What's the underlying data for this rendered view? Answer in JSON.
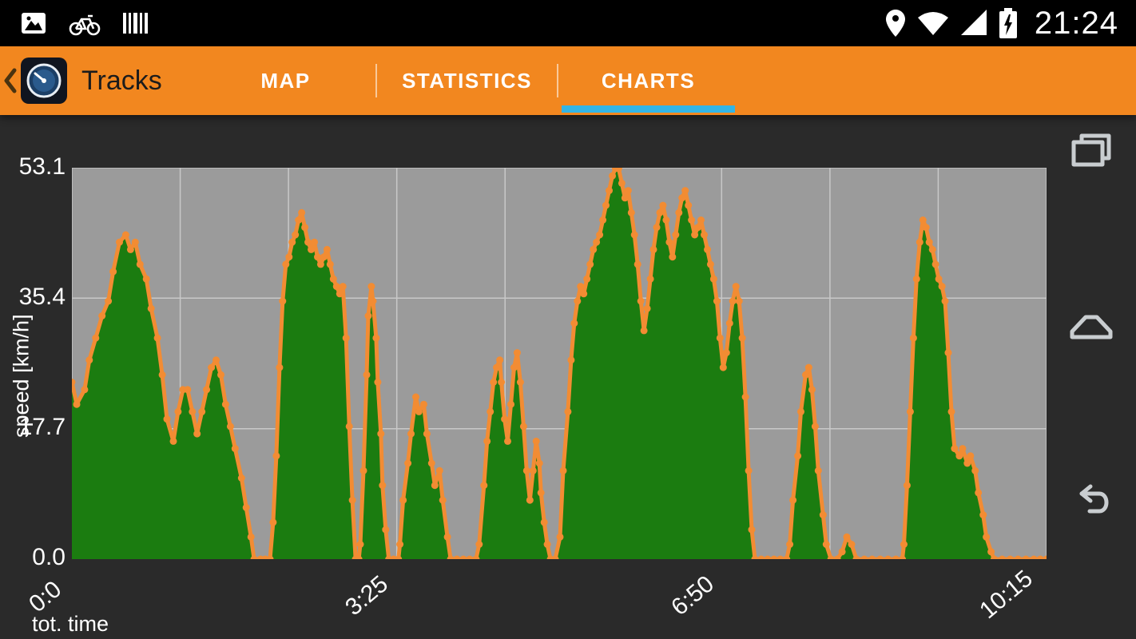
{
  "colors": {
    "app_bar": "#F2871F",
    "status_bar": "#000000",
    "content_bg": "#2A2A2A",
    "tab_underline": "#33B5E5",
    "chart_line": "#F28C33",
    "chart_fill": "#1B7C10",
    "plot_bg": "#9B9B9B",
    "grid": "#C8C8C8",
    "text_light": "#FFFFFF",
    "title_text": "#1C1C1C"
  },
  "status_bar": {
    "time": "21:24",
    "left_icons": [
      "gallery-icon",
      "bike-icon",
      "barcode-icon"
    ],
    "right_icons": [
      "location-icon",
      "wifi-icon",
      "signal-icon",
      "battery-charging-icon"
    ]
  },
  "app_bar": {
    "title": "Tracks",
    "tabs": [
      {
        "label": "MAP",
        "active": false
      },
      {
        "label": "STATISTICS",
        "active": false
      },
      {
        "label": "CHARTS",
        "active": true
      }
    ]
  },
  "nav_rail": {
    "icons": [
      "recents-icon",
      "home-icon",
      "back-icon"
    ]
  },
  "chart_data": {
    "type": "area",
    "ylabel": "speed [km/h]",
    "xlabel": "tot. time",
    "y_max": 53.1,
    "x_max": 615,
    "y_tick_labels": [
      "53.1",
      "35.4",
      "17.7",
      "0.0"
    ],
    "y_tick_values": [
      53.1,
      35.4,
      17.7,
      0
    ],
    "x_tick_labels": [
      "0:0",
      "3:25",
      "6:50",
      "10:15"
    ],
    "x_tick_values": [
      0,
      205,
      410,
      615
    ],
    "v_grid_count": 9,
    "grid": true,
    "legend": null,
    "points": [
      [
        0,
        24
      ],
      [
        3,
        21
      ],
      [
        8,
        23
      ],
      [
        11,
        27
      ],
      [
        15,
        30
      ],
      [
        19,
        33
      ],
      [
        23,
        35
      ],
      [
        26,
        39
      ],
      [
        30,
        43
      ],
      [
        34,
        44
      ],
      [
        37,
        42
      ],
      [
        40,
        43
      ],
      [
        43,
        40
      ],
      [
        47,
        38
      ],
      [
        50,
        34
      ],
      [
        54,
        30
      ],
      [
        57,
        25
      ],
      [
        60,
        19
      ],
      [
        64,
        16
      ],
      [
        67,
        20
      ],
      [
        70,
        23
      ],
      [
        73,
        23
      ],
      [
        76,
        20
      ],
      [
        79,
        17
      ],
      [
        82,
        20
      ],
      [
        85,
        23
      ],
      [
        88,
        26
      ],
      [
        91,
        27
      ],
      [
        94,
        25
      ],
      [
        97,
        21
      ],
      [
        100,
        18
      ],
      [
        103,
        15
      ],
      [
        107,
        11
      ],
      [
        110,
        7
      ],
      [
        113,
        3
      ],
      [
        115,
        0
      ],
      [
        119,
        0
      ],
      [
        122,
        0
      ],
      [
        125,
        0
      ],
      [
        127,
        5
      ],
      [
        129,
        14
      ],
      [
        131,
        26
      ],
      [
        133,
        35
      ],
      [
        135,
        40
      ],
      [
        137,
        41
      ],
      [
        139,
        43
      ],
      [
        141,
        44
      ],
      [
        143,
        46
      ],
      [
        145,
        47
      ],
      [
        147,
        45
      ],
      [
        149,
        43
      ],
      [
        151,
        42
      ],
      [
        153,
        43
      ],
      [
        155,
        41
      ],
      [
        157,
        40
      ],
      [
        159,
        41
      ],
      [
        161,
        42
      ],
      [
        163,
        40
      ],
      [
        165,
        38
      ],
      [
        167,
        37
      ],
      [
        169,
        36
      ],
      [
        171,
        37
      ],
      [
        173,
        30
      ],
      [
        175,
        18
      ],
      [
        177,
        8
      ],
      [
        179,
        0
      ],
      [
        181,
        0
      ],
      [
        182,
        2
      ],
      [
        184,
        12
      ],
      [
        186,
        25
      ],
      [
        187,
        33
      ],
      [
        189,
        37
      ],
      [
        190,
        35
      ],
      [
        192,
        30
      ],
      [
        193,
        24
      ],
      [
        195,
        17
      ],
      [
        196,
        10
      ],
      [
        198,
        4
      ],
      [
        200,
        0
      ],
      [
        203,
        0
      ],
      [
        206,
        0
      ],
      [
        207,
        2
      ],
      [
        209,
        8
      ],
      [
        212,
        13
      ],
      [
        214,
        17
      ],
      [
        217,
        22
      ],
      [
        219,
        20
      ],
      [
        222,
        21
      ],
      [
        224,
        17
      ],
      [
        227,
        13
      ],
      [
        229,
        10
      ],
      [
        232,
        12
      ],
      [
        234,
        8
      ],
      [
        237,
        3
      ],
      [
        239,
        0
      ],
      [
        243,
        0
      ],
      [
        247,
        0
      ],
      [
        251,
        0
      ],
      [
        255,
        0
      ],
      [
        257,
        2
      ],
      [
        260,
        10
      ],
      [
        262,
        16
      ],
      [
        264,
        20
      ],
      [
        266,
        24
      ],
      [
        268,
        26
      ],
      [
        270,
        27
      ],
      [
        271,
        24
      ],
      [
        273,
        19
      ],
      [
        275,
        16
      ],
      [
        277,
        21
      ],
      [
        279,
        26
      ],
      [
        281,
        28
      ],
      [
        283,
        24
      ],
      [
        285,
        18
      ],
      [
        287,
        12
      ],
      [
        289,
        8
      ],
      [
        291,
        12
      ],
      [
        293,
        16
      ],
      [
        295,
        13
      ],
      [
        296,
        9
      ],
      [
        298,
        5
      ],
      [
        300,
        2
      ],
      [
        302,
        0
      ],
      [
        305,
        0
      ],
      [
        308,
        3
      ],
      [
        310,
        12
      ],
      [
        313,
        20
      ],
      [
        315,
        27
      ],
      [
        317,
        32
      ],
      [
        319,
        35
      ],
      [
        321,
        37
      ],
      [
        323,
        36
      ],
      [
        325,
        38
      ],
      [
        327,
        40
      ],
      [
        329,
        42
      ],
      [
        331,
        43
      ],
      [
        333,
        44
      ],
      [
        335,
        46
      ],
      [
        337,
        48
      ],
      [
        339,
        50
      ],
      [
        341,
        52
      ],
      [
        343,
        53
      ],
      [
        345,
        53
      ],
      [
        347,
        51
      ],
      [
        349,
        49
      ],
      [
        351,
        50
      ],
      [
        353,
        47
      ],
      [
        355,
        44
      ],
      [
        357,
        40
      ],
      [
        359,
        35
      ],
      [
        361,
        31
      ],
      [
        363,
        34
      ],
      [
        365,
        38
      ],
      [
        367,
        42
      ],
      [
        369,
        45
      ],
      [
        371,
        47
      ],
      [
        373,
        48
      ],
      [
        375,
        46
      ],
      [
        377,
        43
      ],
      [
        379,
        41
      ],
      [
        381,
        44
      ],
      [
        383,
        47
      ],
      [
        385,
        49
      ],
      [
        387,
        50
      ],
      [
        389,
        48
      ],
      [
        391,
        46
      ],
      [
        393,
        44
      ],
      [
        395,
        45
      ],
      [
        397,
        46
      ],
      [
        399,
        44
      ],
      [
        401,
        42
      ],
      [
        403,
        40
      ],
      [
        405,
        38
      ],
      [
        407,
        35
      ],
      [
        409,
        30
      ],
      [
        411,
        26
      ],
      [
        413,
        28
      ],
      [
        415,
        32
      ],
      [
        417,
        35
      ],
      [
        419,
        37
      ],
      [
        421,
        35
      ],
      [
        423,
        30
      ],
      [
        425,
        22
      ],
      [
        427,
        12
      ],
      [
        429,
        4
      ],
      [
        431,
        0
      ],
      [
        435,
        0
      ],
      [
        439,
        0
      ],
      [
        443,
        0
      ],
      [
        447,
        0
      ],
      [
        451,
        0
      ],
      [
        453,
        2
      ],
      [
        455,
        8
      ],
      [
        458,
        14
      ],
      [
        460,
        20
      ],
      [
        463,
        25
      ],
      [
        465,
        26
      ],
      [
        467,
        23
      ],
      [
        469,
        18
      ],
      [
        471,
        12
      ],
      [
        474,
        6
      ],
      [
        476,
        2
      ],
      [
        479,
        0
      ],
      [
        483,
        0
      ],
      [
        486,
        1
      ],
      [
        489,
        3
      ],
      [
        492,
        2
      ],
      [
        495,
        0
      ],
      [
        500,
        0
      ],
      [
        505,
        0
      ],
      [
        510,
        0
      ],
      [
        515,
        0
      ],
      [
        520,
        0
      ],
      [
        524,
        0
      ],
      [
        525,
        2
      ],
      [
        527,
        10
      ],
      [
        529,
        20
      ],
      [
        531,
        30
      ],
      [
        533,
        38
      ],
      [
        535,
        43
      ],
      [
        537,
        46
      ],
      [
        539,
        45
      ],
      [
        541,
        43
      ],
      [
        543,
        42
      ],
      [
        545,
        40
      ],
      [
        547,
        38
      ],
      [
        549,
        37
      ],
      [
        551,
        35
      ],
      [
        553,
        28
      ],
      [
        555,
        20
      ],
      [
        557,
        15
      ],
      [
        560,
        14
      ],
      [
        562,
        15
      ],
      [
        565,
        13
      ],
      [
        567,
        14
      ],
      [
        570,
        12
      ],
      [
        572,
        9
      ],
      [
        575,
        6
      ],
      [
        577,
        3
      ],
      [
        580,
        1
      ],
      [
        582,
        0
      ],
      [
        587,
        0
      ],
      [
        592,
        0
      ],
      [
        597,
        0
      ],
      [
        602,
        0
      ],
      [
        607,
        0
      ],
      [
        611,
        0
      ],
      [
        615,
        0
      ]
    ]
  }
}
